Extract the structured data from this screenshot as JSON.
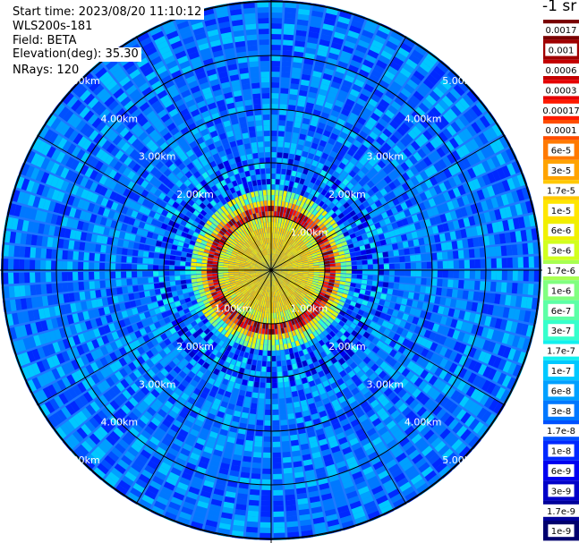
{
  "header": {
    "start_time": "Start time: 2023/08/20 11:10:12",
    "instrument": "WLS200s-181",
    "field": "Field: BETA",
    "elevation": "Elevation(deg): 35.30",
    "nrays": "NRays: 120"
  },
  "colorbar": {
    "unit_label": "-1 sr",
    "ticks": [
      "0.0017",
      "0.001",
      "0.0006",
      "0.0003",
      "0.00017",
      "0.0001",
      "6e-5",
      "3e-5",
      "1.7e-5",
      "1e-5",
      "6e-6",
      "3e-6",
      "1.7e-6",
      "1e-6",
      "6e-7",
      "3e-7",
      "1.7e-7",
      "1e-7",
      "6e-8",
      "3e-8",
      "1.7e-8",
      "1e-8",
      "6e-9",
      "3e-9",
      "1.7e-9",
      "1e-9"
    ],
    "colors": [
      "#7a0000",
      "#a00000",
      "#c40000",
      "#e60000",
      "#ff1a00",
      "#ff4d00",
      "#ff7a00",
      "#ffa300",
      "#ffc800",
      "#ffe600",
      "#f0f000",
      "#d2ff1e",
      "#a8ff52",
      "#80ff80",
      "#5cffa6",
      "#36ffcc",
      "#12f0ee",
      "#00c8ff",
      "#00a0ff",
      "#0078ff",
      "#0050ff",
      "#0028ff",
      "#0000f0",
      "#0000c8",
      "#00009a",
      "#00006e"
    ]
  },
  "chart_data": {
    "type": "ppi",
    "field": "BETA",
    "elevation_deg": 35.3,
    "nrays": 120,
    "range_rings_km": [
      1,
      2,
      3,
      4,
      5
    ],
    "range_labels": [
      "2.00km",
      "3.00km",
      "4.00km",
      "5.00km"
    ],
    "inner_labels": [
      "1.00km"
    ],
    "scale": "log",
    "vmin": 1e-09,
    "vmax": 0.0017,
    "spokes": 12
  }
}
